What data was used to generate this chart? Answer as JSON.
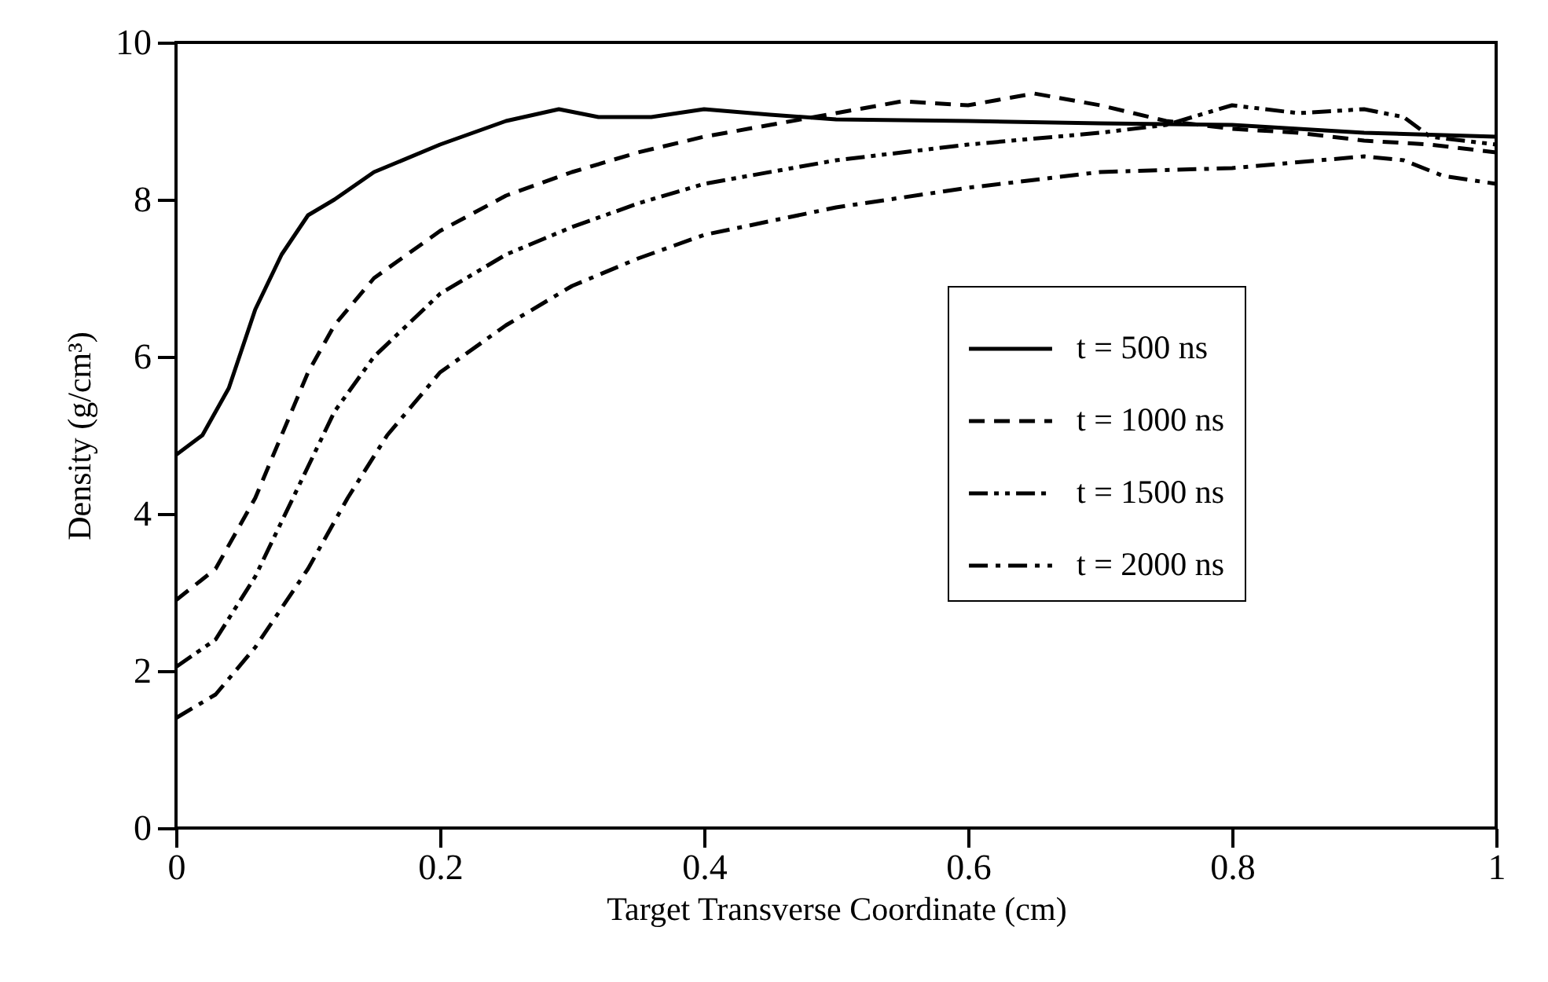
{
  "chart_data": {
    "type": "line",
    "xlabel": "Target  Transverse Coordinate (cm)",
    "ylabel": "Density (g/cm³)",
    "xlim": [
      0,
      1
    ],
    "ylim": [
      0,
      10
    ],
    "xticks": [
      0,
      0.2,
      0.4,
      0.6,
      0.8,
      1
    ],
    "yticks": [
      0,
      2,
      4,
      6,
      8,
      10
    ],
    "grid": false,
    "legend": "right",
    "marker": "none",
    "series": [
      {
        "name": "t = 500 ns",
        "color": "#000000",
        "line_style": "solid",
        "x": [
          0,
          0.02,
          0.04,
          0.06,
          0.08,
          0.1,
          0.12,
          0.15,
          0.2,
          0.25,
          0.29,
          0.32,
          0.36,
          0.4,
          0.45,
          0.5,
          0.6,
          0.7,
          0.8,
          0.9,
          1.0
        ],
        "values": [
          4.75,
          5.0,
          5.6,
          6.6,
          7.3,
          7.8,
          8.0,
          8.35,
          8.7,
          9.0,
          9.15,
          9.05,
          9.05,
          9.15,
          9.08,
          9.02,
          9.0,
          8.97,
          8.95,
          8.85,
          8.8
        ]
      },
      {
        "name": "t = 1000 ns",
        "color": "#000000",
        "line_style": "dashed",
        "x": [
          0,
          0.03,
          0.06,
          0.08,
          0.1,
          0.12,
          0.15,
          0.2,
          0.25,
          0.3,
          0.35,
          0.4,
          0.45,
          0.5,
          0.55,
          0.6,
          0.65,
          0.7,
          0.75,
          0.8,
          0.85,
          0.9,
          0.95,
          1.0
        ],
        "values": [
          2.9,
          3.3,
          4.2,
          5.0,
          5.8,
          6.4,
          7.0,
          7.6,
          8.05,
          8.35,
          8.6,
          8.8,
          8.95,
          9.1,
          9.25,
          9.2,
          9.35,
          9.2,
          9.0,
          8.9,
          8.85,
          8.75,
          8.7,
          8.6
        ]
      },
      {
        "name": "t = 1500 ns",
        "color": "#000000",
        "line_style": "dashdotdot",
        "x": [
          0,
          0.03,
          0.06,
          0.08,
          0.1,
          0.12,
          0.15,
          0.2,
          0.25,
          0.3,
          0.35,
          0.4,
          0.5,
          0.6,
          0.7,
          0.75,
          0.8,
          0.85,
          0.9,
          0.93,
          0.95,
          1.0
        ],
        "values": [
          2.05,
          2.4,
          3.2,
          3.9,
          4.6,
          5.3,
          6.0,
          6.8,
          7.3,
          7.65,
          7.95,
          8.2,
          8.5,
          8.7,
          8.85,
          8.95,
          9.2,
          9.1,
          9.15,
          9.05,
          8.8,
          8.7
        ]
      },
      {
        "name": "t = 2000 ns",
        "color": "#000000",
        "line_style": "dashdot",
        "x": [
          0,
          0.03,
          0.06,
          0.1,
          0.13,
          0.16,
          0.2,
          0.25,
          0.3,
          0.35,
          0.4,
          0.5,
          0.6,
          0.7,
          0.8,
          0.9,
          0.93,
          0.96,
          1.0
        ],
        "values": [
          1.4,
          1.7,
          2.3,
          3.3,
          4.2,
          5.0,
          5.8,
          6.4,
          6.9,
          7.25,
          7.55,
          7.9,
          8.15,
          8.35,
          8.4,
          8.55,
          8.5,
          8.3,
          8.2
        ]
      }
    ]
  }
}
